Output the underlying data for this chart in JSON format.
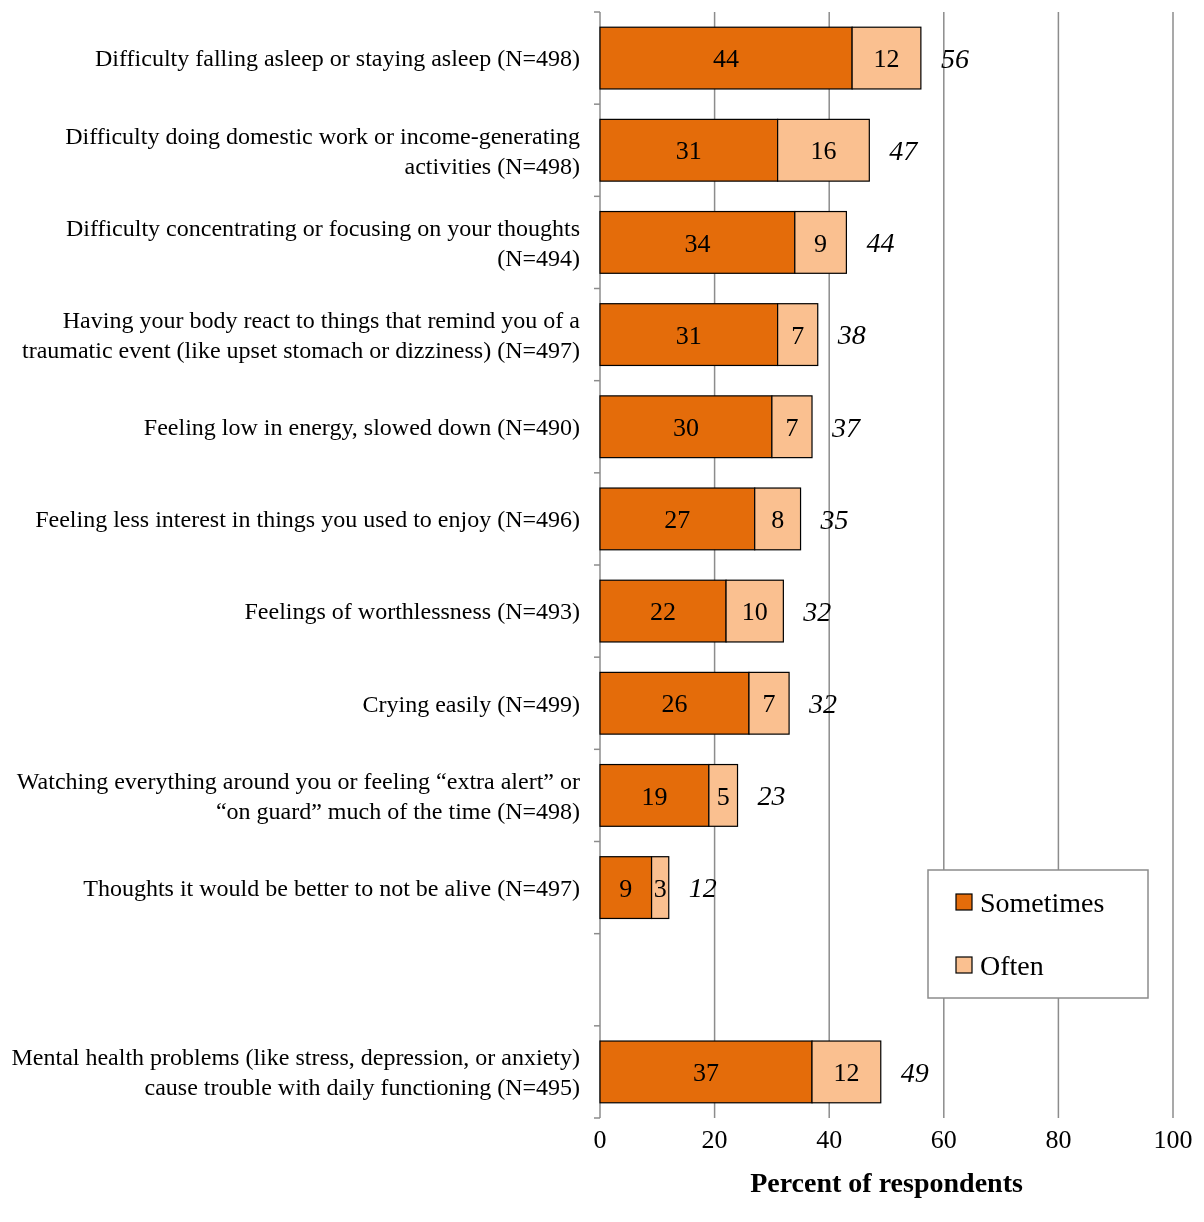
{
  "chart_data": {
    "type": "bar",
    "orientation": "horizontal",
    "stacked": true,
    "xlabel": "Percent of respondents",
    "categories": [
      "Difficulty falling asleep or staying asleep (N=498)",
      "Difficulty doing domestic work or income-generating activities (N=498)",
      "Difficulty concentrating or focusing on your thoughts (N=494)",
      "Having your body react to things that remind you of a traumatic event (like upset stomach or dizziness) (N=497)",
      "Feeling low in energy, slowed down (N=490)",
      "Feeling less interest in things you used to enjoy (N=496)",
      "Feelings of worthlessness (N=493)",
      "Crying easily (N=499)",
      "Watching everything around you or feeling “extra alert” or “on guard” much of the time (N=498)",
      "Thoughts it would be better to not be alive (N=497)",
      null,
      "Mental health problems (like stress, depression, or anxiety) cause trouble with daily functioning (N=495)"
    ],
    "series": [
      {
        "name": "Sometimes",
        "color": "#e46c0a",
        "values": [
          44,
          31,
          34,
          31,
          30,
          27,
          22,
          26,
          19,
          9,
          null,
          37
        ]
      },
      {
        "name": "Often",
        "color": "#fac090",
        "values": [
          12,
          16,
          9,
          7,
          7,
          8,
          10,
          7,
          5,
          3,
          null,
          12
        ]
      }
    ],
    "totals": [
      "56",
      "47",
      "44",
      "38",
      "37",
      "35",
      "32",
      "32",
      "23",
      "12",
      null,
      "49"
    ],
    "data_labels": true,
    "xlim": [
      0,
      100
    ],
    "xticks": [
      0,
      20,
      40,
      60,
      80,
      100
    ],
    "grid": "x",
    "legend": "bottom right"
  }
}
